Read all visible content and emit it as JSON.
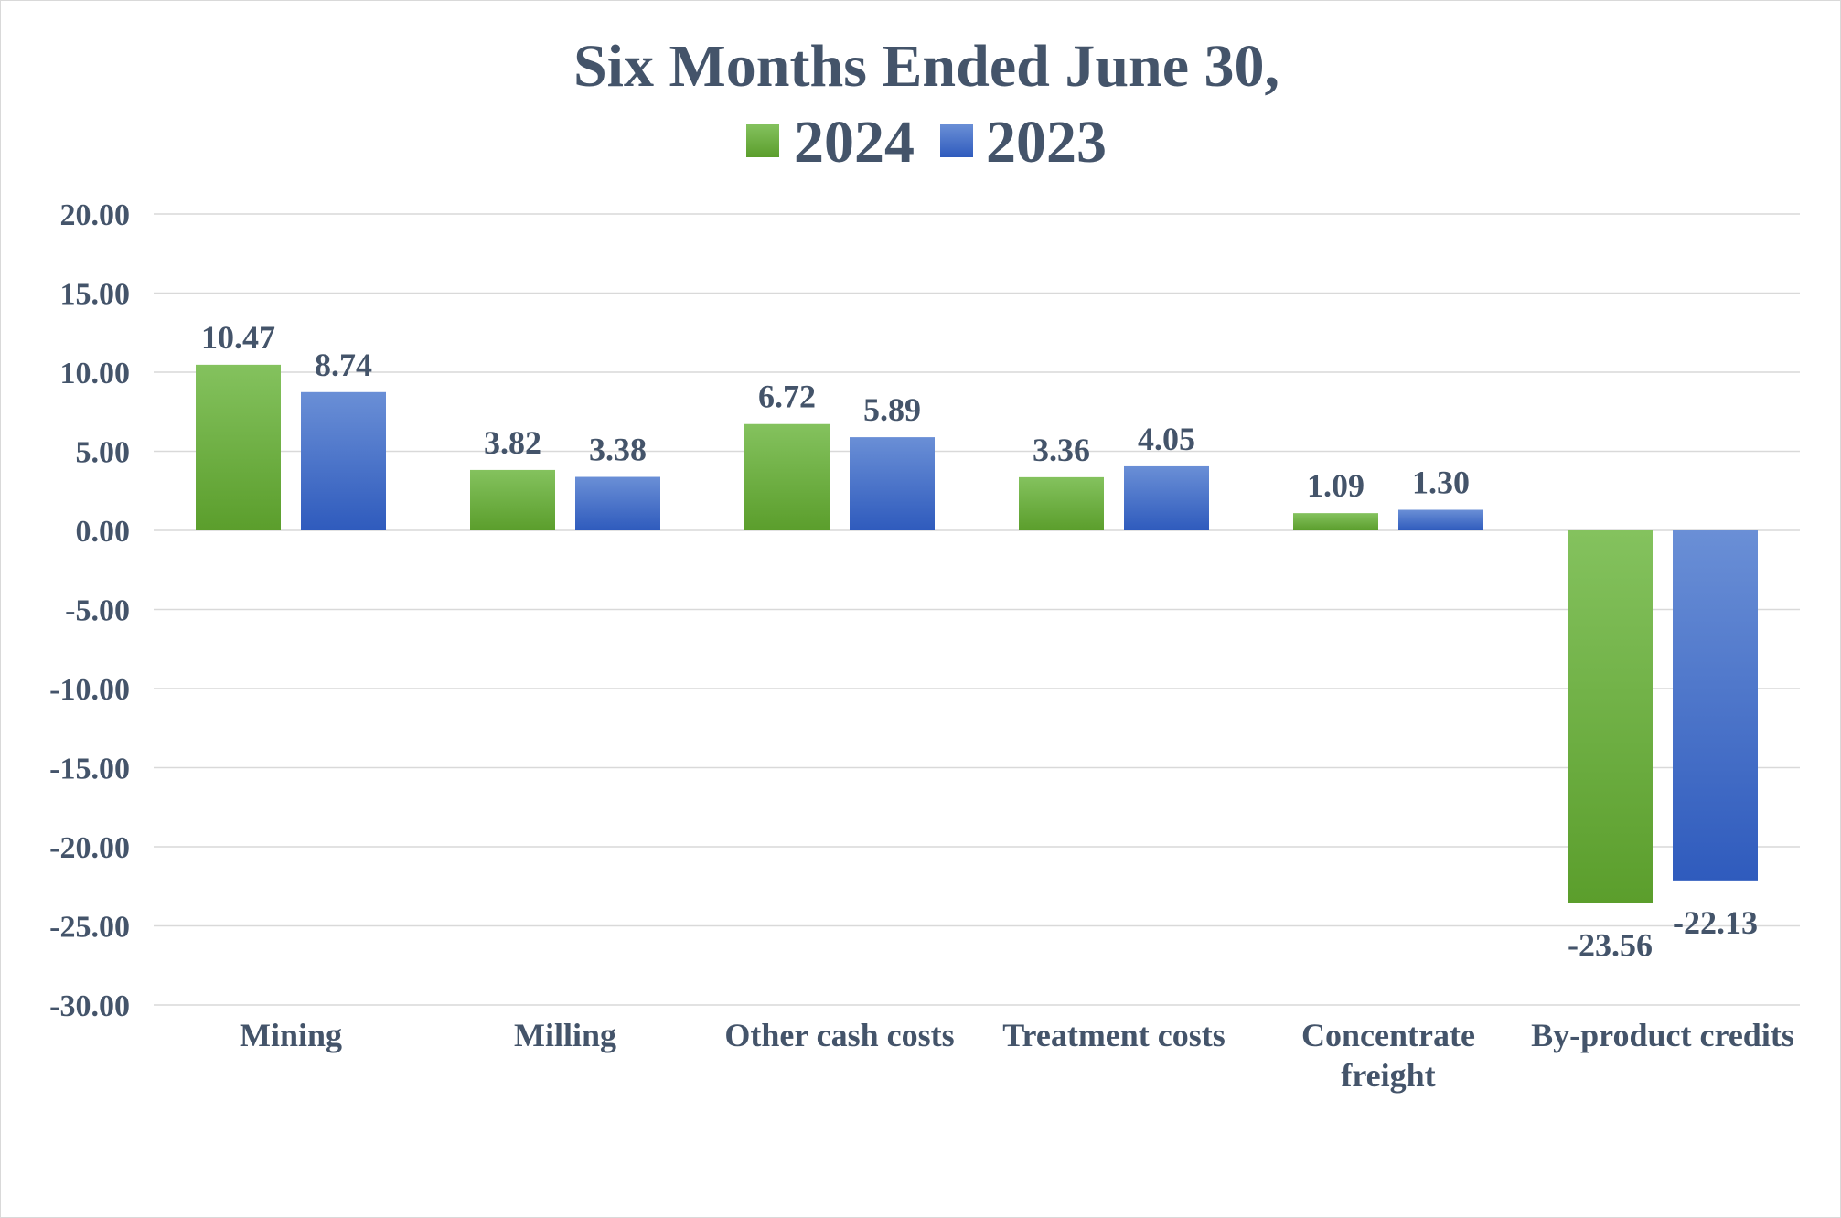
{
  "chart_data": {
    "type": "bar",
    "title": "Six Months Ended June 30,",
    "categories": [
      "Mining",
      "Milling",
      "Other cash costs",
      "Treatment costs",
      "Concentrate freight",
      "By-product credits"
    ],
    "series": [
      {
        "name": "2024",
        "values": [
          10.47,
          3.82,
          6.72,
          3.36,
          1.09,
          -23.56
        ],
        "labels": [
          "10.47",
          "3.82",
          "6.72",
          "3.36",
          "1.09",
          "-23.56"
        ],
        "color": "#6aaa3c"
      },
      {
        "name": "2023",
        "values": [
          8.74,
          3.38,
          5.89,
          4.05,
          1.3,
          -22.13
        ],
        "labels": [
          "8.74",
          "3.38",
          "5.89",
          "4.05",
          "1.30",
          "-22.13"
        ],
        "color": "#3a6cc6"
      }
    ],
    "ylim": [
      -30,
      20
    ],
    "yticks": [
      20,
      15,
      10,
      5,
      0,
      -5,
      -10,
      -15,
      -20,
      -25,
      -30
    ],
    "ytick_labels": [
      "20.00",
      "15.00",
      "10.00",
      "5.00",
      "0.00",
      "-5.00",
      "-10.00",
      "-15.00",
      "-20.00",
      "-25.00",
      "-30.00"
    ],
    "xlabel": "",
    "ylabel": "",
    "grid": true,
    "legend_position": "top-center"
  }
}
